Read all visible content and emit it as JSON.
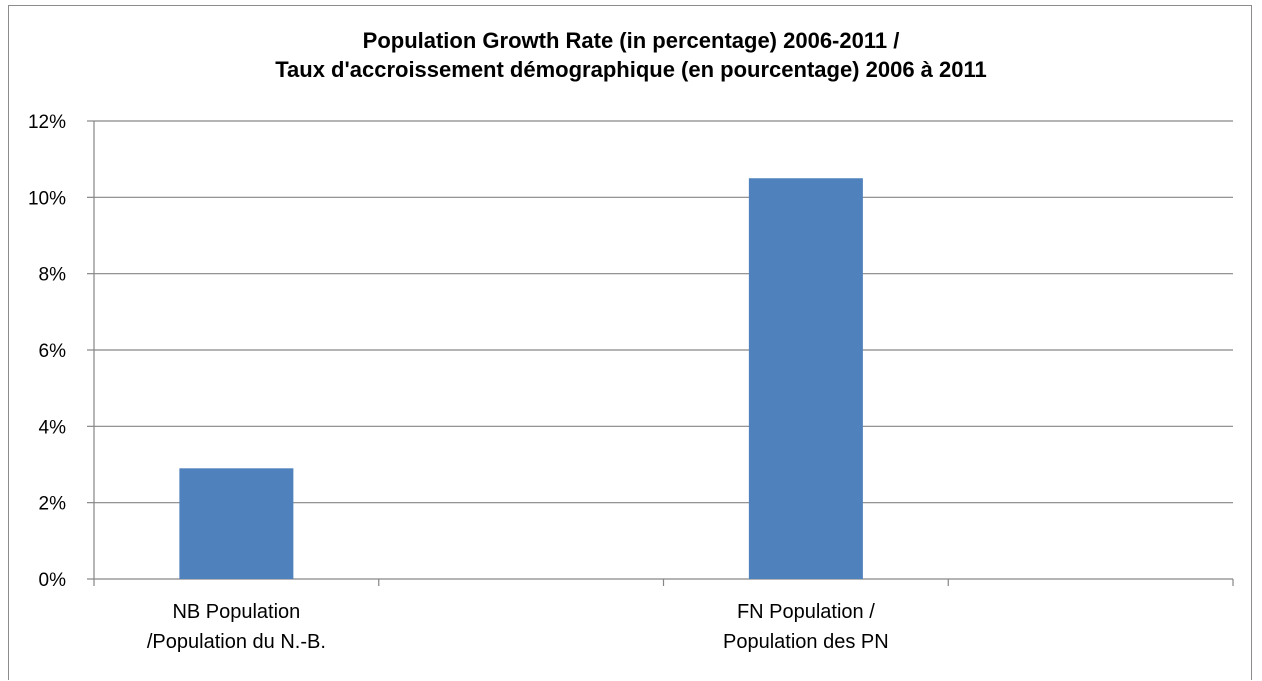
{
  "chart_data": {
    "type": "bar",
    "title_lines": [
      "Population Growth Rate (in percentage) 2006-2011 /",
      "Taux d'accroissement démographique (en pourcentage) 2006 à 2011"
    ],
    "categories": [
      [
        "NB Population",
        "/Population du N.-B."
      ],
      [
        "FN Population /",
        "Population des PN"
      ]
    ],
    "values": [
      2.9,
      10.5
    ],
    "value_unit": "%",
    "ylim": [
      0,
      12
    ],
    "yticks": [
      0,
      2,
      4,
      6,
      8,
      10,
      12
    ],
    "ytick_labels": [
      "0%",
      "2%",
      "4%",
      "6%",
      "8%",
      "10%",
      "12%"
    ],
    "grid": "horizontal",
    "legend": "none",
    "bar_color": "#4F81BD",
    "grid_color": "#868686"
  }
}
